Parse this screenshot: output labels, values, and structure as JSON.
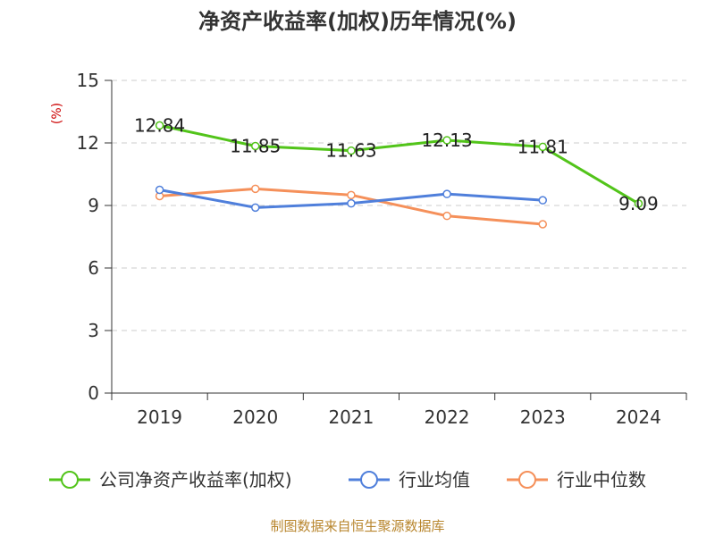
{
  "title": "净资产收益率(加权)历年情况(%)",
  "source": "制图数据来自恒生聚源数据库",
  "colors": {
    "background": "#ffffff",
    "grid": "#cccccc",
    "axis": "#333333",
    "unit": "#cc0000",
    "source": "#b8862e"
  },
  "chart_data": {
    "type": "line",
    "title": "净资产收益率(加权)历年情况(%)",
    "ylabel": "(%)",
    "xlabel": "",
    "categories": [
      "2019",
      "2020",
      "2021",
      "2022",
      "2023",
      "2024"
    ],
    "ylim": [
      0,
      15
    ],
    "yticks": [
      "0",
      "3",
      "6",
      "9",
      "12",
      "15"
    ],
    "grid": "horizontal dashed",
    "legend_position": "bottom",
    "series": [
      {
        "name": "公司净资产收益率(加权)",
        "color": "#52c41a",
        "values": [
          12.84,
          11.85,
          11.63,
          12.13,
          11.81,
          9.09
        ],
        "labels": [
          "12.84",
          "11.85",
          "11.63",
          "12.13",
          "11.81",
          "9.09"
        ]
      },
      {
        "name": "行业均值",
        "color": "#4f7fdb",
        "values": [
          9.75,
          8.9,
          9.1,
          9.55,
          9.25,
          null
        ]
      },
      {
        "name": "行业中位数",
        "color": "#f5905a",
        "values": [
          9.45,
          9.8,
          9.5,
          8.5,
          8.1,
          null
        ]
      }
    ]
  }
}
